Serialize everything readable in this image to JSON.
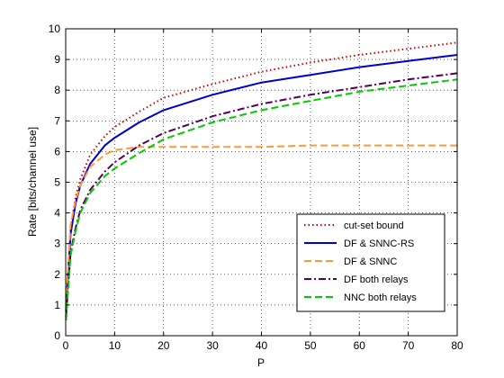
{
  "chart_data": {
    "type": "line",
    "title": "",
    "xlabel": "P",
    "ylabel": "Rate [bits/channel use]",
    "xlim": [
      0,
      80
    ],
    "ylim": [
      0,
      10
    ],
    "xticks": [
      "0",
      "10",
      "20",
      "30",
      "40",
      "50",
      "60",
      "70",
      "80"
    ],
    "yticks": [
      "0",
      "1",
      "2",
      "3",
      "4",
      "5",
      "6",
      "7",
      "8",
      "9",
      "10"
    ],
    "grid": true,
    "legend_position": "bottom-right",
    "x": [
      0.05,
      1,
      2,
      3,
      5,
      8,
      10,
      15,
      20,
      30,
      40,
      50,
      60,
      70,
      80
    ],
    "series": [
      {
        "name": "cut-set bound",
        "color": "#cc0000",
        "dash": "dotted",
        "values": [
          0.9,
          3.5,
          4.5,
          5.1,
          5.9,
          6.5,
          6.8,
          7.3,
          7.75,
          8.2,
          8.6,
          8.9,
          9.15,
          9.35,
          9.55
        ]
      },
      {
        "name": "DF & SNNC-RS",
        "color": "#0000cc",
        "dash": "solid",
        "values": [
          0.8,
          3.3,
          4.3,
          4.9,
          5.6,
          6.2,
          6.45,
          6.95,
          7.35,
          7.85,
          8.25,
          8.5,
          8.75,
          8.95,
          9.15
        ]
      },
      {
        "name": "DF & SNNC",
        "color": "#ff9933",
        "dash": "dashed",
        "values": [
          1.0,
          3.6,
          4.4,
          4.9,
          5.5,
          5.9,
          6.05,
          6.15,
          6.15,
          6.15,
          6.15,
          6.2,
          6.2,
          6.2,
          6.2
        ]
      },
      {
        "name": "DF both relays",
        "color": "#550055",
        "dash": "dashdot",
        "values": [
          0.6,
          2.7,
          3.5,
          4.1,
          4.75,
          5.35,
          5.65,
          6.2,
          6.6,
          7.15,
          7.55,
          7.85,
          8.1,
          8.35,
          8.55
        ]
      },
      {
        "name": "NNC both relays",
        "color": "#00cc00",
        "dash": "dashed",
        "values": [
          0.5,
          2.6,
          3.4,
          4.0,
          4.65,
          5.2,
          5.45,
          5.95,
          6.4,
          6.95,
          7.35,
          7.65,
          7.95,
          8.15,
          8.35
        ]
      }
    ]
  }
}
